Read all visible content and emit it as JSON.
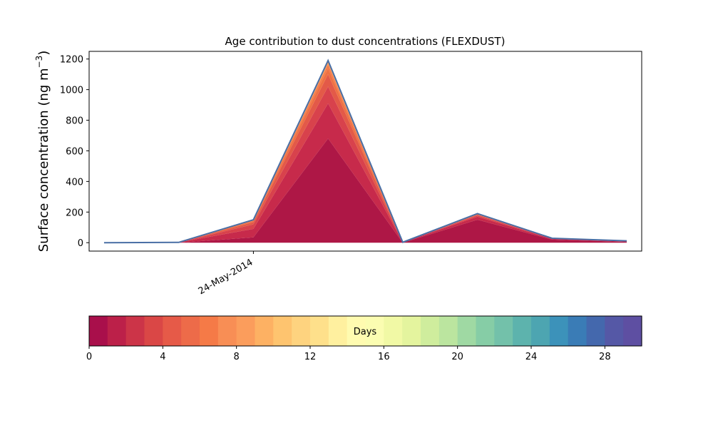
{
  "chart_data": {
    "type": "area",
    "title": "Age contribution to dust concentrations (FLEXDUST)",
    "ylabel_main": "Surface concentration (ng m",
    "ylabel_sup": "−3",
    "ylabel_close": ")",
    "xlabel": "",
    "xlim": [
      -0.2,
      7.2
    ],
    "ylim": [
      -55,
      1250
    ],
    "yticks": [
      0,
      200,
      400,
      600,
      800,
      1000,
      1200
    ],
    "x": [
      0,
      1,
      2,
      3,
      4,
      5,
      6,
      7
    ],
    "xtick_positions": [
      2
    ],
    "xtick_labels": [
      "24-May-2014"
    ],
    "grid": false,
    "layer_colors": [
      "#ae1746",
      "#c72a4b",
      "#d8424c",
      "#e35a48",
      "#ee7144",
      "#f47b4a",
      "#f89d5b",
      "#fbb067"
    ],
    "series": [
      {
        "values": [
          0,
          0,
          35,
          680,
          0,
          150,
          20,
          5
        ]
      },
      {
        "values": [
          0,
          2,
          55,
          230,
          2,
          20,
          5,
          3
        ]
      },
      {
        "values": [
          0,
          0,
          30,
          110,
          1,
          8,
          3,
          2
        ]
      },
      {
        "values": [
          0,
          0,
          15,
          80,
          0,
          5,
          1,
          1
        ]
      },
      {
        "values": [
          0,
          0,
          8,
          40,
          0,
          4,
          0,
          1
        ]
      },
      {
        "values": [
          0,
          0,
          5,
          25,
          0,
          3,
          0,
          0
        ]
      },
      {
        "values": [
          0,
          0,
          2,
          15,
          0,
          0,
          0,
          0
        ]
      },
      {
        "values": [
          0,
          0,
          0,
          10,
          0,
          0,
          0,
          0
        ]
      }
    ],
    "total_line_color": "#4a6fa5"
  },
  "colorbar": {
    "label": "Days",
    "min": 0,
    "max": 30,
    "ticks": [
      0,
      4,
      8,
      12,
      16,
      20,
      24,
      28
    ],
    "colors": [
      "#a90f4b",
      "#bc2049",
      "#cc3448",
      "#da4746",
      "#e65a48",
      "#ed6b49",
      "#f57a47",
      "#f88e55",
      "#fb9d5c",
      "#fdb163",
      "#fec46f",
      "#fed37f",
      "#fee08b",
      "#fff09f",
      "#fffbb0",
      "#fbfdb1",
      "#f1f9a5",
      "#e4f49e",
      "#cfed9d",
      "#bbe59f",
      "#9fd9a3",
      "#86cda6",
      "#73c1aa",
      "#5db3ad",
      "#4da5b1",
      "#3c92ba",
      "#3a7cb6",
      "#4468ad",
      "#5558a6",
      "#5e4fa2"
    ]
  }
}
